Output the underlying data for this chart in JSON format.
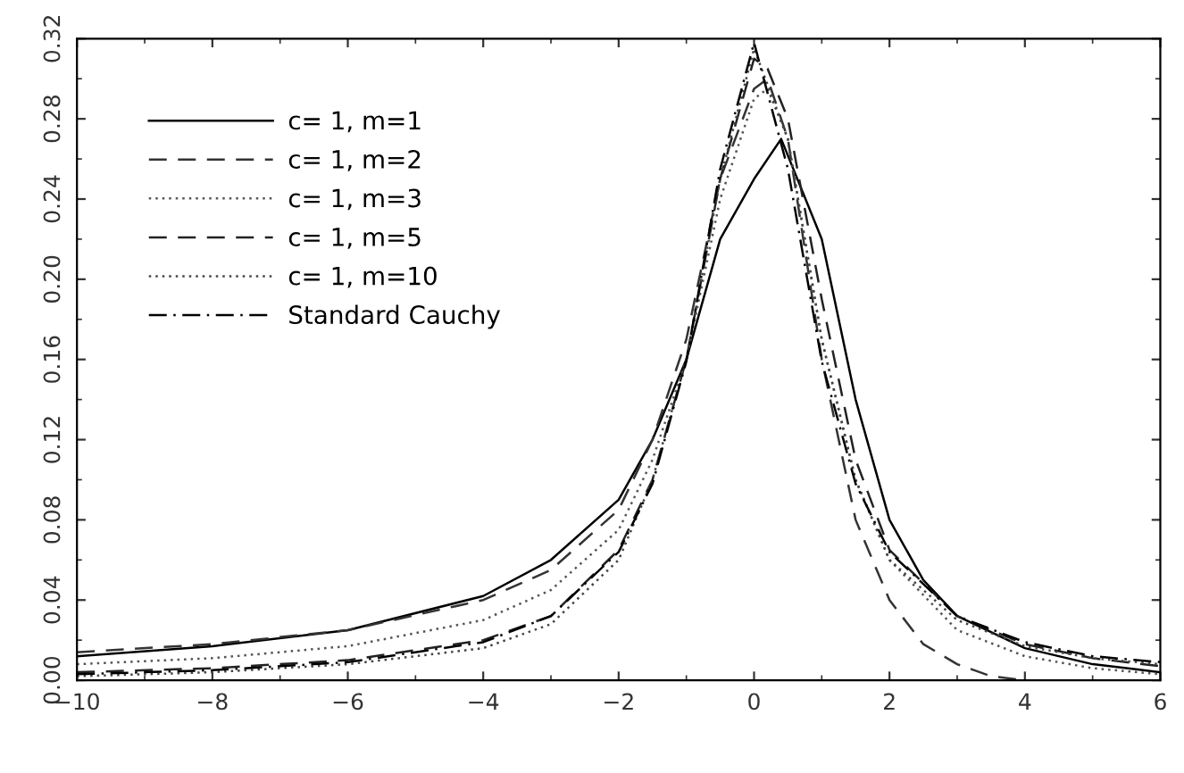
{
  "chart_data": {
    "type": "line",
    "xlim": [
      -10,
      6
    ],
    "ylim": [
      0,
      0.32
    ],
    "xticks": [
      {
        "value": -10,
        "label": "−10"
      },
      {
        "value": -8,
        "label": "−8"
      },
      {
        "value": -6,
        "label": "−6"
      },
      {
        "value": -4,
        "label": "−4"
      },
      {
        "value": -2,
        "label": "−2"
      },
      0,
      2,
      4,
      6
    ],
    "yticks": [
      {
        "value": 0,
        "label": "0.00"
      },
      {
        "value": 0.04,
        "label": "0.04"
      },
      {
        "value": 0.08,
        "label": "0.08"
      },
      {
        "value": 0.12,
        "label": "0.12"
      },
      {
        "value": 0.16,
        "label": "0.16"
      },
      {
        "value": 0.2,
        "label": "0.20"
      },
      {
        "value": 0.24,
        "label": "0.24"
      },
      {
        "value": 0.28,
        "label": "0.28"
      },
      {
        "value": 0.32,
        "label": "0.32"
      }
    ],
    "grid": false,
    "legend": "top left",
    "series": [
      {
        "name": "c= 1, m=1",
        "color": "#000000",
        "line_style": "solid",
        "x": [
          -10,
          -8,
          -6,
          -4,
          -3,
          -2,
          -1.5,
          -1,
          -0.5,
          0,
          0.4,
          1,
          1.5,
          2,
          2.5,
          3,
          4,
          5,
          6
        ],
        "values": [
          0.012,
          0.017,
          0.025,
          0.042,
          0.06,
          0.09,
          0.12,
          0.16,
          0.22,
          0.25,
          0.27,
          0.22,
          0.14,
          0.08,
          0.05,
          0.032,
          0.016,
          0.008,
          0.004
        ]
      },
      {
        "name": "c= 1, m=2",
        "color": "#333333",
        "line_style": "dashed",
        "x": [
          -10,
          -8,
          -6,
          -4,
          -3,
          -2,
          -1.5,
          -1,
          -0.5,
          0,
          0.2,
          0.5,
          1,
          1.5,
          2,
          2.5,
          3,
          3.5,
          4
        ],
        "values": [
          0.014,
          0.018,
          0.025,
          0.04,
          0.055,
          0.085,
          0.12,
          0.17,
          0.25,
          0.295,
          0.3,
          0.27,
          0.16,
          0.08,
          0.04,
          0.018,
          0.008,
          0.002,
          0.0
        ]
      },
      {
        "name": "c= 1, m=3",
        "color": "#555555",
        "line_style": "dotted",
        "x": [
          -10,
          -8,
          -6,
          -4,
          -3,
          -2,
          -1.5,
          -1,
          -0.5,
          0,
          0.2,
          0.5,
          1,
          1.5,
          2,
          3,
          4,
          5,
          6
        ],
        "values": [
          0.008,
          0.011,
          0.017,
          0.03,
          0.045,
          0.075,
          0.11,
          0.16,
          0.24,
          0.29,
          0.295,
          0.27,
          0.17,
          0.1,
          0.06,
          0.025,
          0.012,
          0.006,
          0.003
        ]
      },
      {
        "name": "c= 1, m=5",
        "color": "#222222",
        "line_style": "dashed",
        "x": [
          -10,
          -8,
          -6,
          -4,
          -3,
          -2,
          -1.5,
          -1,
          -0.5,
          0,
          0.2,
          0.5,
          1,
          1.5,
          2,
          3,
          4,
          5,
          6
        ],
        "values": [
          0.004,
          0.006,
          0.01,
          0.02,
          0.032,
          0.065,
          0.1,
          0.16,
          0.25,
          0.31,
          0.305,
          0.28,
          0.19,
          0.11,
          0.065,
          0.032,
          0.018,
          0.011,
          0.007
        ]
      },
      {
        "name": "c= 1, m=10",
        "color": "#444444",
        "line_style": "dotted",
        "x": [
          -10,
          -8,
          -6,
          -4,
          -3,
          -2,
          -1.5,
          -1,
          -0.5,
          0,
          0.5,
          1,
          1.5,
          2,
          3,
          4,
          5,
          6
        ],
        "values": [
          0.002,
          0.004,
          0.008,
          0.016,
          0.028,
          0.06,
          0.1,
          0.16,
          0.25,
          0.315,
          0.27,
          0.17,
          0.1,
          0.06,
          0.03,
          0.017,
          0.011,
          0.008
        ]
      },
      {
        "name": "Standard Cauchy",
        "color": "#000000",
        "line_style": "dashdot",
        "x": [
          -10,
          -8,
          -6,
          -4,
          -3,
          -2,
          -1.5,
          -1,
          -0.5,
          0,
          0.5,
          1,
          1.5,
          2,
          3,
          4,
          5,
          6
        ],
        "values": [
          0.003,
          0.005,
          0.009,
          0.019,
          0.032,
          0.064,
          0.098,
          0.159,
          0.255,
          0.318,
          0.255,
          0.159,
          0.098,
          0.064,
          0.032,
          0.019,
          0.012,
          0.009
        ]
      }
    ]
  }
}
